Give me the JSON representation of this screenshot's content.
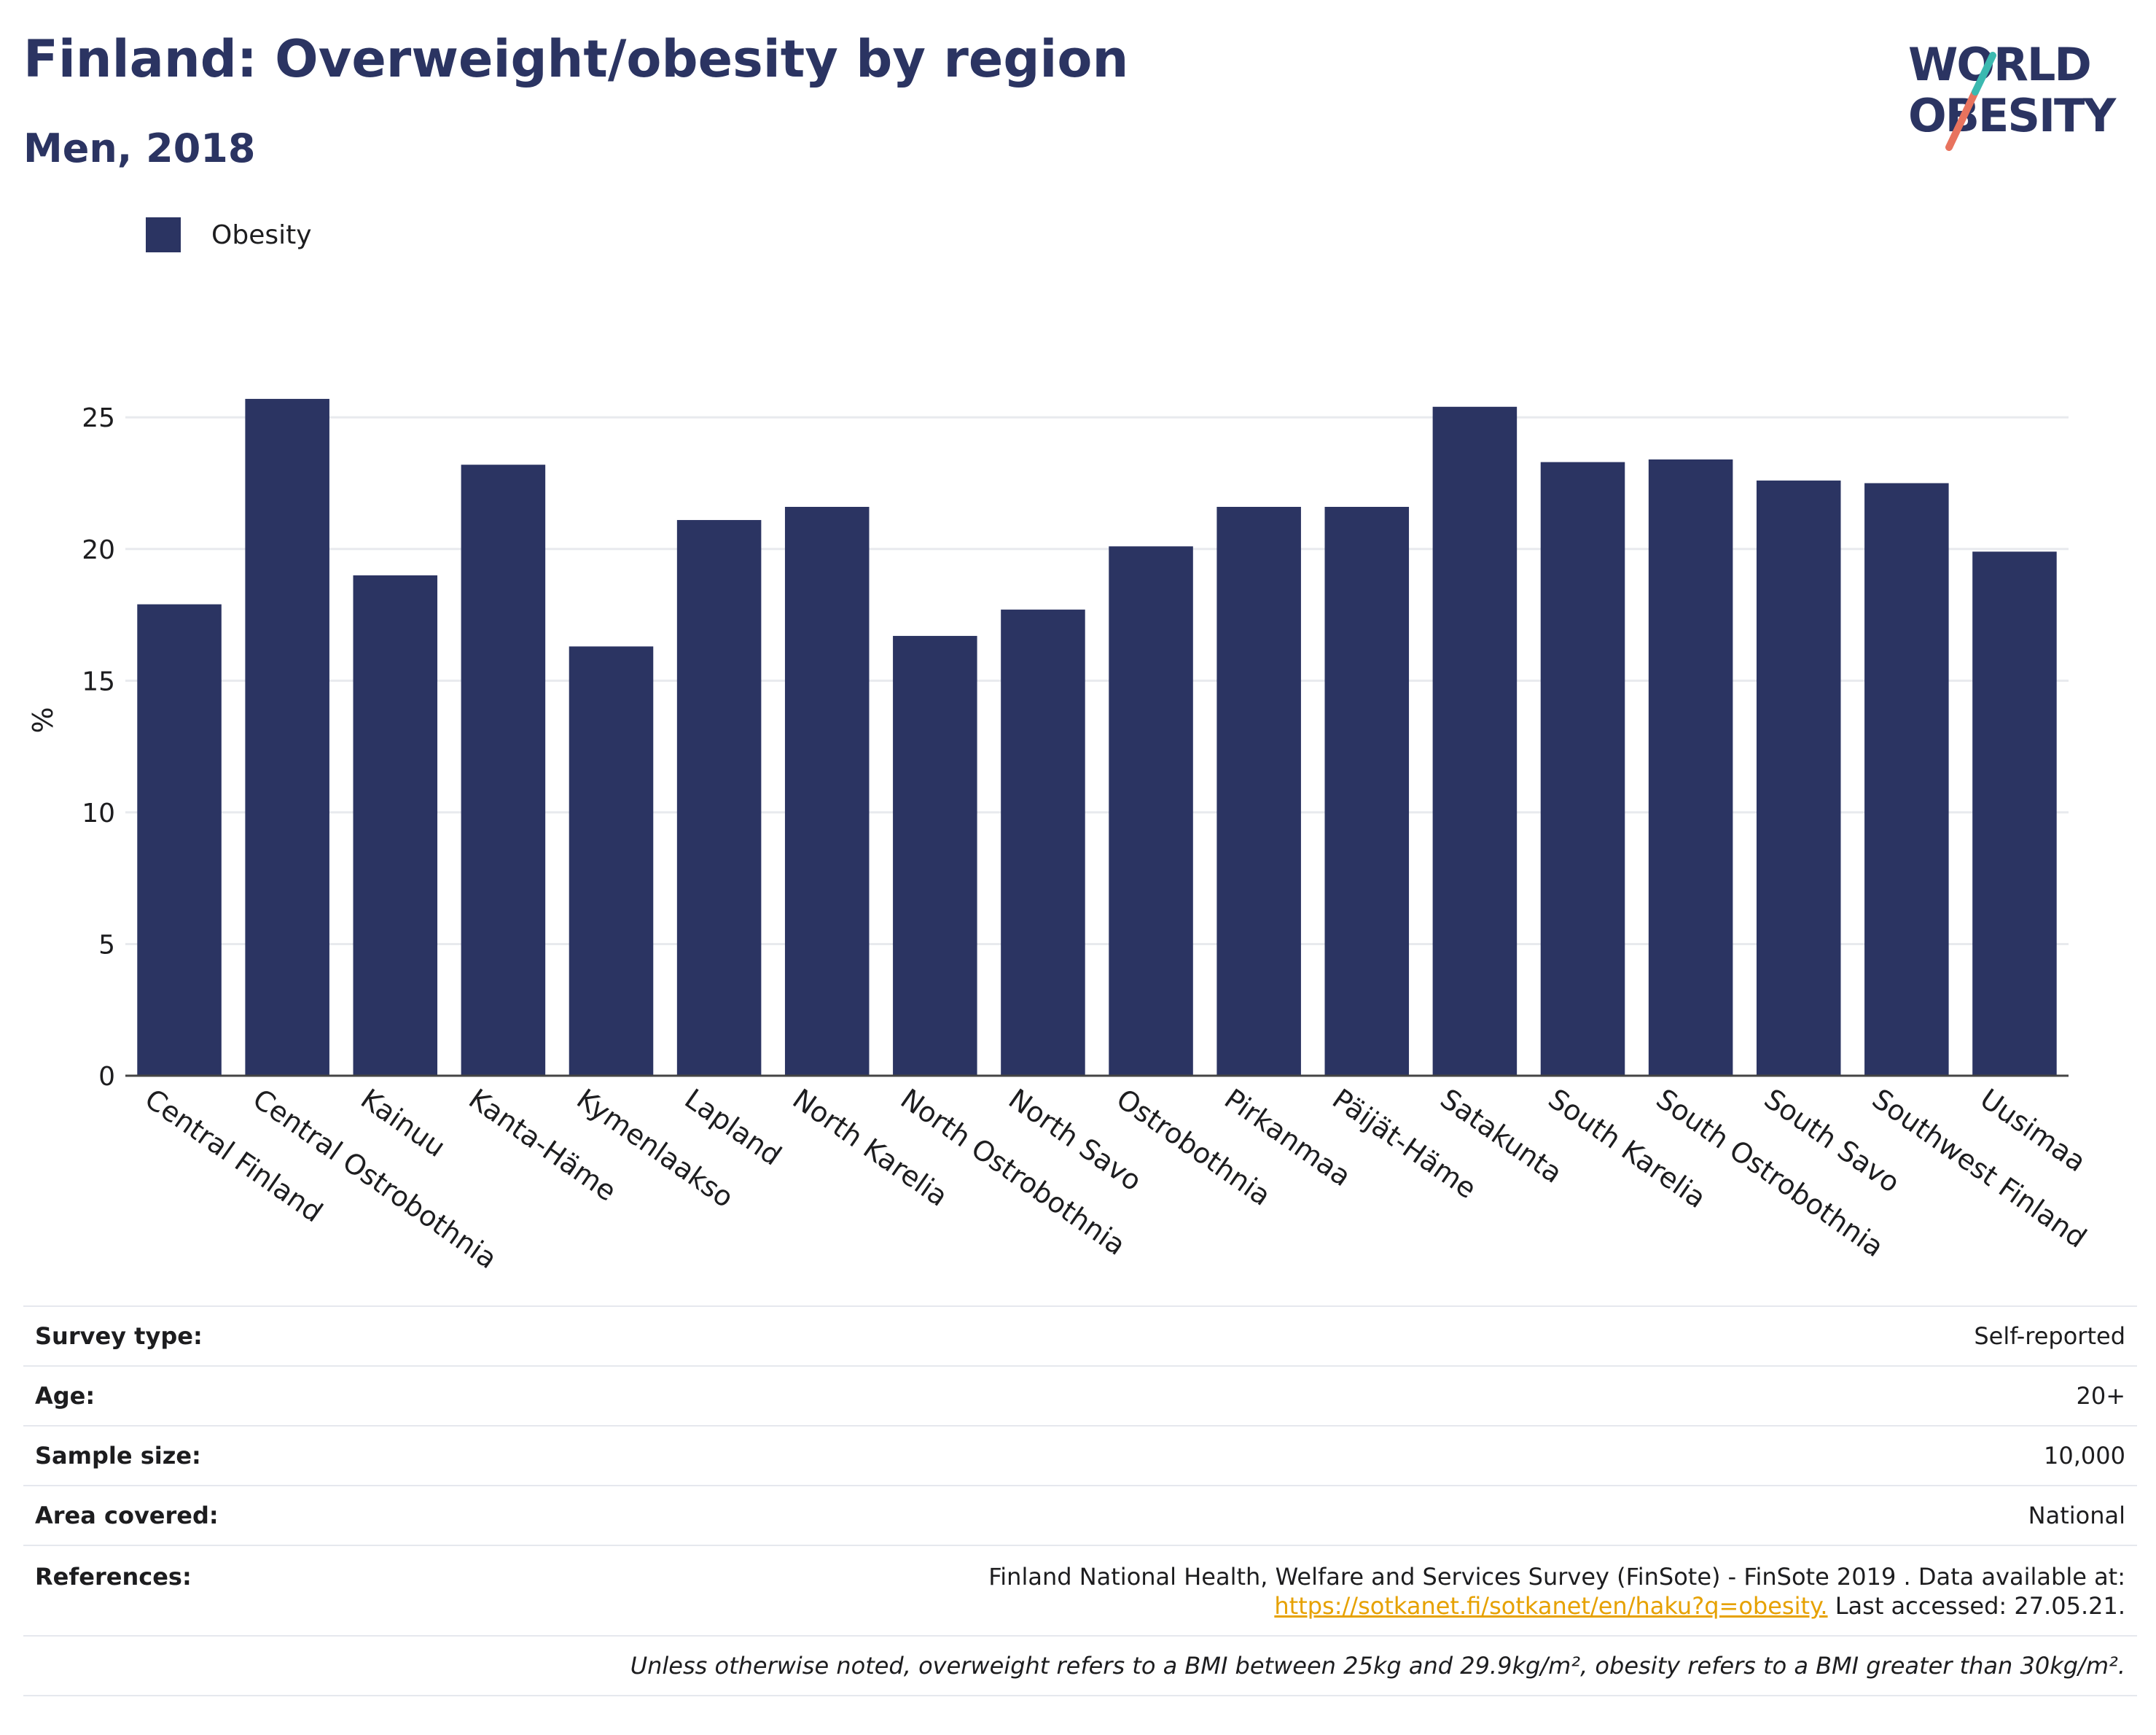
{
  "header": {
    "title": "Finland: Overweight/obesity by region",
    "subtitle": "Men, 2018"
  },
  "logo": {
    "line1": "WORLD",
    "line2": "OBESITY"
  },
  "colors": {
    "bar": "#2b3462",
    "accent_teal": "#3bb9b0",
    "accent_coral": "#e8735e",
    "link": "#e6a100"
  },
  "chart_data": {
    "type": "bar",
    "title": "Finland: Overweight/obesity by region",
    "subtitle": "Men, 2018",
    "ylabel": "%",
    "xlabel": "",
    "ylim": [
      0,
      27
    ],
    "yticks": [
      0,
      5,
      10,
      15,
      20,
      25
    ],
    "grid": true,
    "legend_position": "top-left",
    "categories": [
      "Central Finland",
      "Central Ostrobothnia",
      "Kainuu",
      "Kanta-Häme",
      "Kymenlaakso",
      "Lapland",
      "North Karelia",
      "North Ostrobothnia",
      "North Savo",
      "Ostrobothnia",
      "Pirkanmaa",
      "Päijät-Häme",
      "Satakunta",
      "South Karelia",
      "South Ostrobothnia",
      "South Savo",
      "Southwest Finland",
      "Uusimaa"
    ],
    "series": [
      {
        "name": "Obesity",
        "color": "#2b3462",
        "values": [
          17.9,
          25.7,
          19.0,
          23.2,
          16.3,
          21.1,
          21.6,
          16.7,
          17.7,
          20.1,
          21.6,
          21.6,
          25.4,
          23.3,
          23.4,
          22.6,
          22.5,
          19.9
        ]
      }
    ]
  },
  "info": {
    "survey_type_label": "Survey type:",
    "survey_type_value": "Self-reported",
    "age_label": "Age:",
    "age_value": "20+",
    "sample_size_label": "Sample size:",
    "sample_size_value": "10,000",
    "area_label": "Area covered:",
    "area_value": "National",
    "references_label": "References:",
    "references_line1": "Finland National Health, Welfare and Services Survey (FinSote) - FinSote 2019 . Data available at:",
    "references_link": "https://sotkanet.fi/sotkanet/en/haku?q=obesity.",
    "references_accessed": " Last accessed: 27.05.21.",
    "note": "Unless otherwise noted, overweight refers to a BMI between 25kg and 29.9kg/m², obesity refers to a BMI greater than 30kg/m²."
  }
}
